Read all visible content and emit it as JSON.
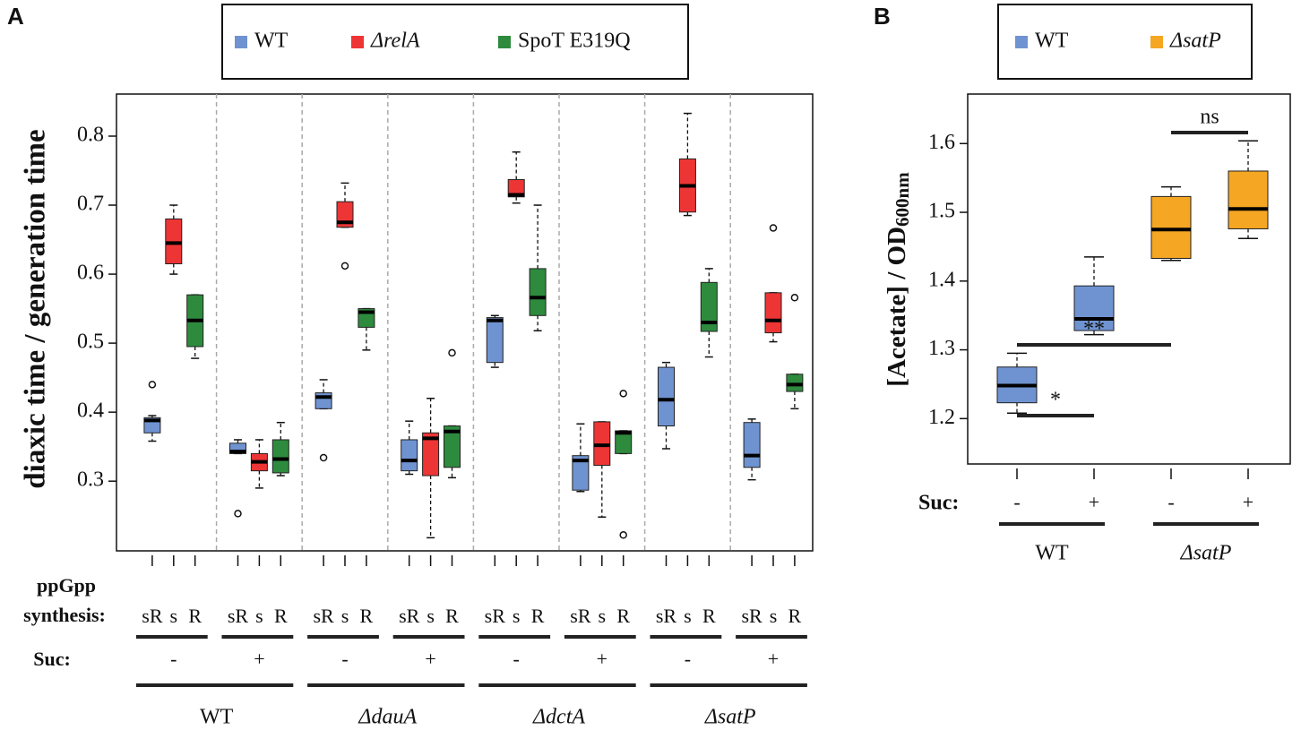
{
  "chart_data": [
    {
      "type": "box",
      "panel": "A",
      "y_label": "diaxic time / generation time",
      "ylim": [
        0.199,
        0.861
      ],
      "yticks": [
        0.3,
        0.4,
        0.5,
        0.6,
        0.7,
        0.8
      ],
      "series": [
        {
          "name": "WT",
          "color": "#6f93d1",
          "boxes": [
            {
              "low": 0.358,
              "q1": 0.37,
              "median": 0.388,
              "q3": 0.392,
              "high": 0.395,
              "outliers": [
                0.44
              ]
            },
            {
              "low": 0.34,
              "q1": 0.34,
              "median": 0.343,
              "q3": 0.355,
              "high": 0.36,
              "outliers": [
                0.253
              ]
            },
            {
              "low": 0.405,
              "q1": 0.405,
              "median": 0.422,
              "q3": 0.428,
              "high": 0.447,
              "outliers": [
                0.334
              ]
            },
            {
              "low": 0.31,
              "q1": 0.315,
              "median": 0.33,
              "q3": 0.36,
              "high": 0.387
            },
            {
              "low": 0.465,
              "q1": 0.472,
              "median": 0.533,
              "q3": 0.537,
              "high": 0.54
            },
            {
              "low": 0.285,
              "q1": 0.287,
              "median": 0.33,
              "q3": 0.337,
              "high": 0.383
            },
            {
              "low": 0.347,
              "q1": 0.38,
              "median": 0.418,
              "q3": 0.465,
              "high": 0.472
            },
            {
              "low": 0.302,
              "q1": 0.32,
              "median": 0.337,
              "q3": 0.385,
              "high": 0.39
            }
          ]
        },
        {
          "name": "ΔrelA",
          "color": "#ee3535",
          "boxes": [
            {
              "low": 0.6,
              "q1": 0.615,
              "median": 0.645,
              "q3": 0.68,
              "high": 0.7
            },
            {
              "low": 0.29,
              "q1": 0.315,
              "median": 0.328,
              "q3": 0.34,
              "high": 0.36
            },
            {
              "low": 0.668,
              "q1": 0.668,
              "median": 0.675,
              "q3": 0.705,
              "high": 0.732,
              "outliers": [
                0.612
              ]
            },
            {
              "low": 0.218,
              "q1": 0.308,
              "median": 0.362,
              "q3": 0.37,
              "high": 0.42
            },
            {
              "low": 0.703,
              "q1": 0.712,
              "median": 0.715,
              "q3": 0.737,
              "high": 0.777
            },
            {
              "low": 0.248,
              "q1": 0.323,
              "median": 0.352,
              "q3": 0.386,
              "high": 0.386
            },
            {
              "low": 0.685,
              "q1": 0.69,
              "median": 0.728,
              "q3": 0.767,
              "high": 0.833
            },
            {
              "low": 0.502,
              "q1": 0.515,
              "median": 0.533,
              "q3": 0.573,
              "high": 0.573,
              "outliers": [
                0.667
              ]
            }
          ]
        },
        {
          "name": "SpoT E319Q",
          "color": "#2e8b3e",
          "boxes": [
            {
              "low": 0.478,
              "q1": 0.495,
              "median": 0.533,
              "q3": 0.57,
              "high": 0.57
            },
            {
              "low": 0.308,
              "q1": 0.312,
              "median": 0.332,
              "q3": 0.36,
              "high": 0.385
            },
            {
              "low": 0.49,
              "q1": 0.523,
              "median": 0.545,
              "q3": 0.55,
              "high": 0.55
            },
            {
              "low": 0.305,
              "q1": 0.32,
              "median": 0.372,
              "q3": 0.38,
              "high": 0.38,
              "outliers": [
                0.486
              ]
            },
            {
              "low": 0.518,
              "q1": 0.54,
              "median": 0.566,
              "q3": 0.608,
              "high": 0.7
            },
            {
              "low": 0.34,
              "q1": 0.34,
              "median": 0.37,
              "q3": 0.373,
              "high": 0.373,
              "outliers": [
                0.427,
                0.222
              ]
            },
            {
              "low": 0.48,
              "q1": 0.517,
              "median": 0.53,
              "q3": 0.588,
              "high": 0.608
            },
            {
              "low": 0.405,
              "q1": 0.43,
              "median": 0.44,
              "q3": 0.455,
              "high": 0.455,
              "outliers": [
                0.566
              ]
            }
          ]
        }
      ],
      "synthesis_label": [
        "ppGpp",
        "synthesis:"
      ],
      "synthesis": [
        "sR",
        "s",
        "R"
      ],
      "suc_label": "Suc:",
      "suc": [
        "-",
        "+"
      ],
      "strains": [
        "WT",
        "ΔdauA",
        "ΔdctA",
        "ΔsatP"
      ]
    },
    {
      "type": "box",
      "panel": "B",
      "y_label": "[Acetate] / OD",
      "y_label_sub": "600nm",
      "ylim": [
        1.134,
        1.672
      ],
      "yticks": [
        1.2,
        1.3,
        1.4,
        1.5,
        1.6
      ],
      "series": [
        {
          "name": "WT",
          "color": "#6f93d1",
          "boxes": [
            {
              "low": 1.208,
              "q1": 1.223,
              "median": 1.248,
              "q3": 1.275,
              "high": 1.295
            },
            {
              "low": 1.322,
              "q1": 1.328,
              "median": 1.345,
              "q3": 1.393,
              "high": 1.435
            }
          ]
        },
        {
          "name": "ΔsatP",
          "color": "#f5a623",
          "boxes": [
            {
              "low": 1.43,
              "q1": 1.433,
              "median": 1.475,
              "q3": 1.523,
              "high": 1.537
            },
            {
              "low": 1.462,
              "q1": 1.476,
              "median": 1.505,
              "q3": 1.56,
              "high": 1.604
            }
          ]
        }
      ],
      "suc_label": "Suc:",
      "suc": [
        "-",
        "+"
      ],
      "strains": [
        "WT",
        "ΔsatP"
      ],
      "annotations": [
        "*",
        "**",
        "ns"
      ]
    }
  ]
}
